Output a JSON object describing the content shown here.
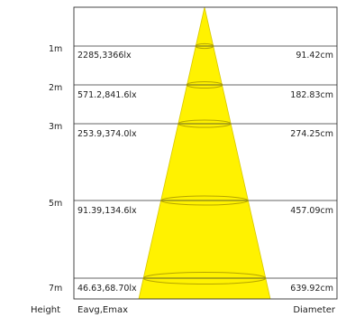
{
  "rows": [
    {
      "height": "1m",
      "eavg_emax": "2285,3366lx",
      "diameter": "91.42cm"
    },
    {
      "height": "2m",
      "eavg_emax": "571.2,841.6lx",
      "diameter": "182.83cm"
    },
    {
      "height": "3m",
      "eavg_emax": "253.9,374.0lx",
      "diameter": "274.25cm"
    },
    {
      "height": "5m",
      "eavg_emax": "91.39,134.6lx",
      "diameter": "457.09cm"
    },
    {
      "height": "7m",
      "eavg_emax": "46.63,68.70lx",
      "diameter": "639.92cm"
    }
  ],
  "footer": {
    "height_label": "Height",
    "eavg_label": "Eavg,Emax",
    "diameter_label": "Diameter"
  },
  "colors": {
    "beam": "#fff200",
    "beam_stroke": "#d8c800",
    "ellipse": "#b5a400",
    "line": "#333333"
  }
}
